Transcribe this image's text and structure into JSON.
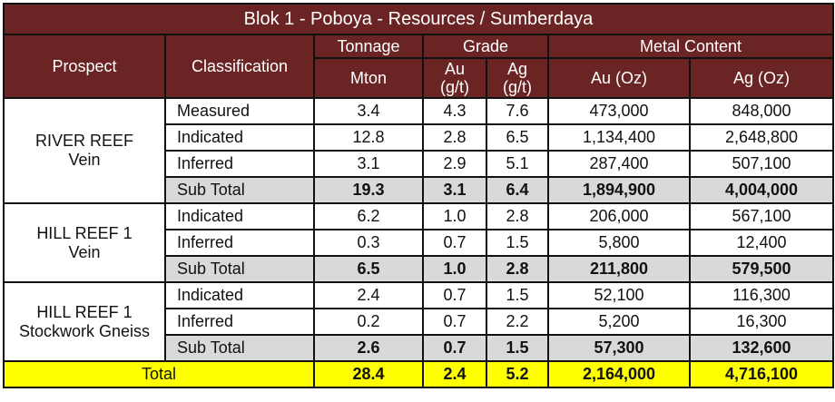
{
  "title": "Blok 1 - Poboya - Resources / Sumberdaya",
  "headers": {
    "prospect": "Prospect",
    "classification": "Classification",
    "tonnage": "Tonnage",
    "grade": "Grade",
    "metal_content": "Metal Content",
    "mton": "Mton",
    "au_gt": "Au\n(g/t)",
    "ag_gt": "Ag\n(g/t)",
    "au_oz": "Au (Oz)",
    "ag_oz": "Ag (Oz)"
  },
  "groups": [
    {
      "prospect_line1": "RIVER REEF",
      "prospect_line2": "Vein",
      "rows": [
        {
          "classification": "Measured",
          "mton": "3.4",
          "au_gt": "4.3",
          "ag_gt": "7.6",
          "au_oz": "473,000",
          "ag_oz": "848,000"
        },
        {
          "classification": "Indicated",
          "mton": "12.8",
          "au_gt": "2.8",
          "ag_gt": "6.5",
          "au_oz": "1,134,400",
          "ag_oz": "2,648,800"
        },
        {
          "classification": "Inferred",
          "mton": "3.1",
          "au_gt": "2.9",
          "ag_gt": "5.1",
          "au_oz": "287,400",
          "ag_oz": "507,100"
        }
      ],
      "subtotal": {
        "classification": "Sub Total",
        "mton": "19.3",
        "au_gt": "3.1",
        "ag_gt": "6.4",
        "au_oz": "1,894,900",
        "ag_oz": "4,004,000"
      }
    },
    {
      "prospect_line1": "HILL REEF 1",
      "prospect_line2": "Vein",
      "rows": [
        {
          "classification": "Indicated",
          "mton": "6.2",
          "au_gt": "1.0",
          "ag_gt": "2.8",
          "au_oz": "206,000",
          "ag_oz": "567,100"
        },
        {
          "classification": "Inferred",
          "mton": "0.3",
          "au_gt": "0.7",
          "ag_gt": "1.5",
          "au_oz": "5,800",
          "ag_oz": "12,400"
        }
      ],
      "subtotal": {
        "classification": "Sub Total",
        "mton": "6.5",
        "au_gt": "1.0",
        "ag_gt": "2.8",
        "au_oz": "211,800",
        "ag_oz": "579,500"
      }
    },
    {
      "prospect_line1": "HILL REEF 1",
      "prospect_line2": "Stockwork Gneiss",
      "rows": [
        {
          "classification": "Indicated",
          "mton": "2.4",
          "au_gt": "0.7",
          "ag_gt": "1.5",
          "au_oz": "52,100",
          "ag_oz": "116,300"
        },
        {
          "classification": "Inferred",
          "mton": "0.2",
          "au_gt": "0.7",
          "ag_gt": "2.2",
          "au_oz": "5,200",
          "ag_oz": "16,300"
        }
      ],
      "subtotal": {
        "classification": "Sub Total",
        "mton": "2.6",
        "au_gt": "0.7",
        "ag_gt": "1.5",
        "au_oz": "57,300",
        "ag_oz": "132,600"
      }
    }
  ],
  "total": {
    "label": "Total",
    "mton": "28.4",
    "au_gt": "2.4",
    "ag_gt": "5.2",
    "au_oz": "2,164,000",
    "ag_oz": "4,716,100"
  },
  "colors": {
    "header_bg": "#6b2424",
    "subtotal_bg": "#d9d9d9",
    "total_bg": "#ffff00"
  }
}
